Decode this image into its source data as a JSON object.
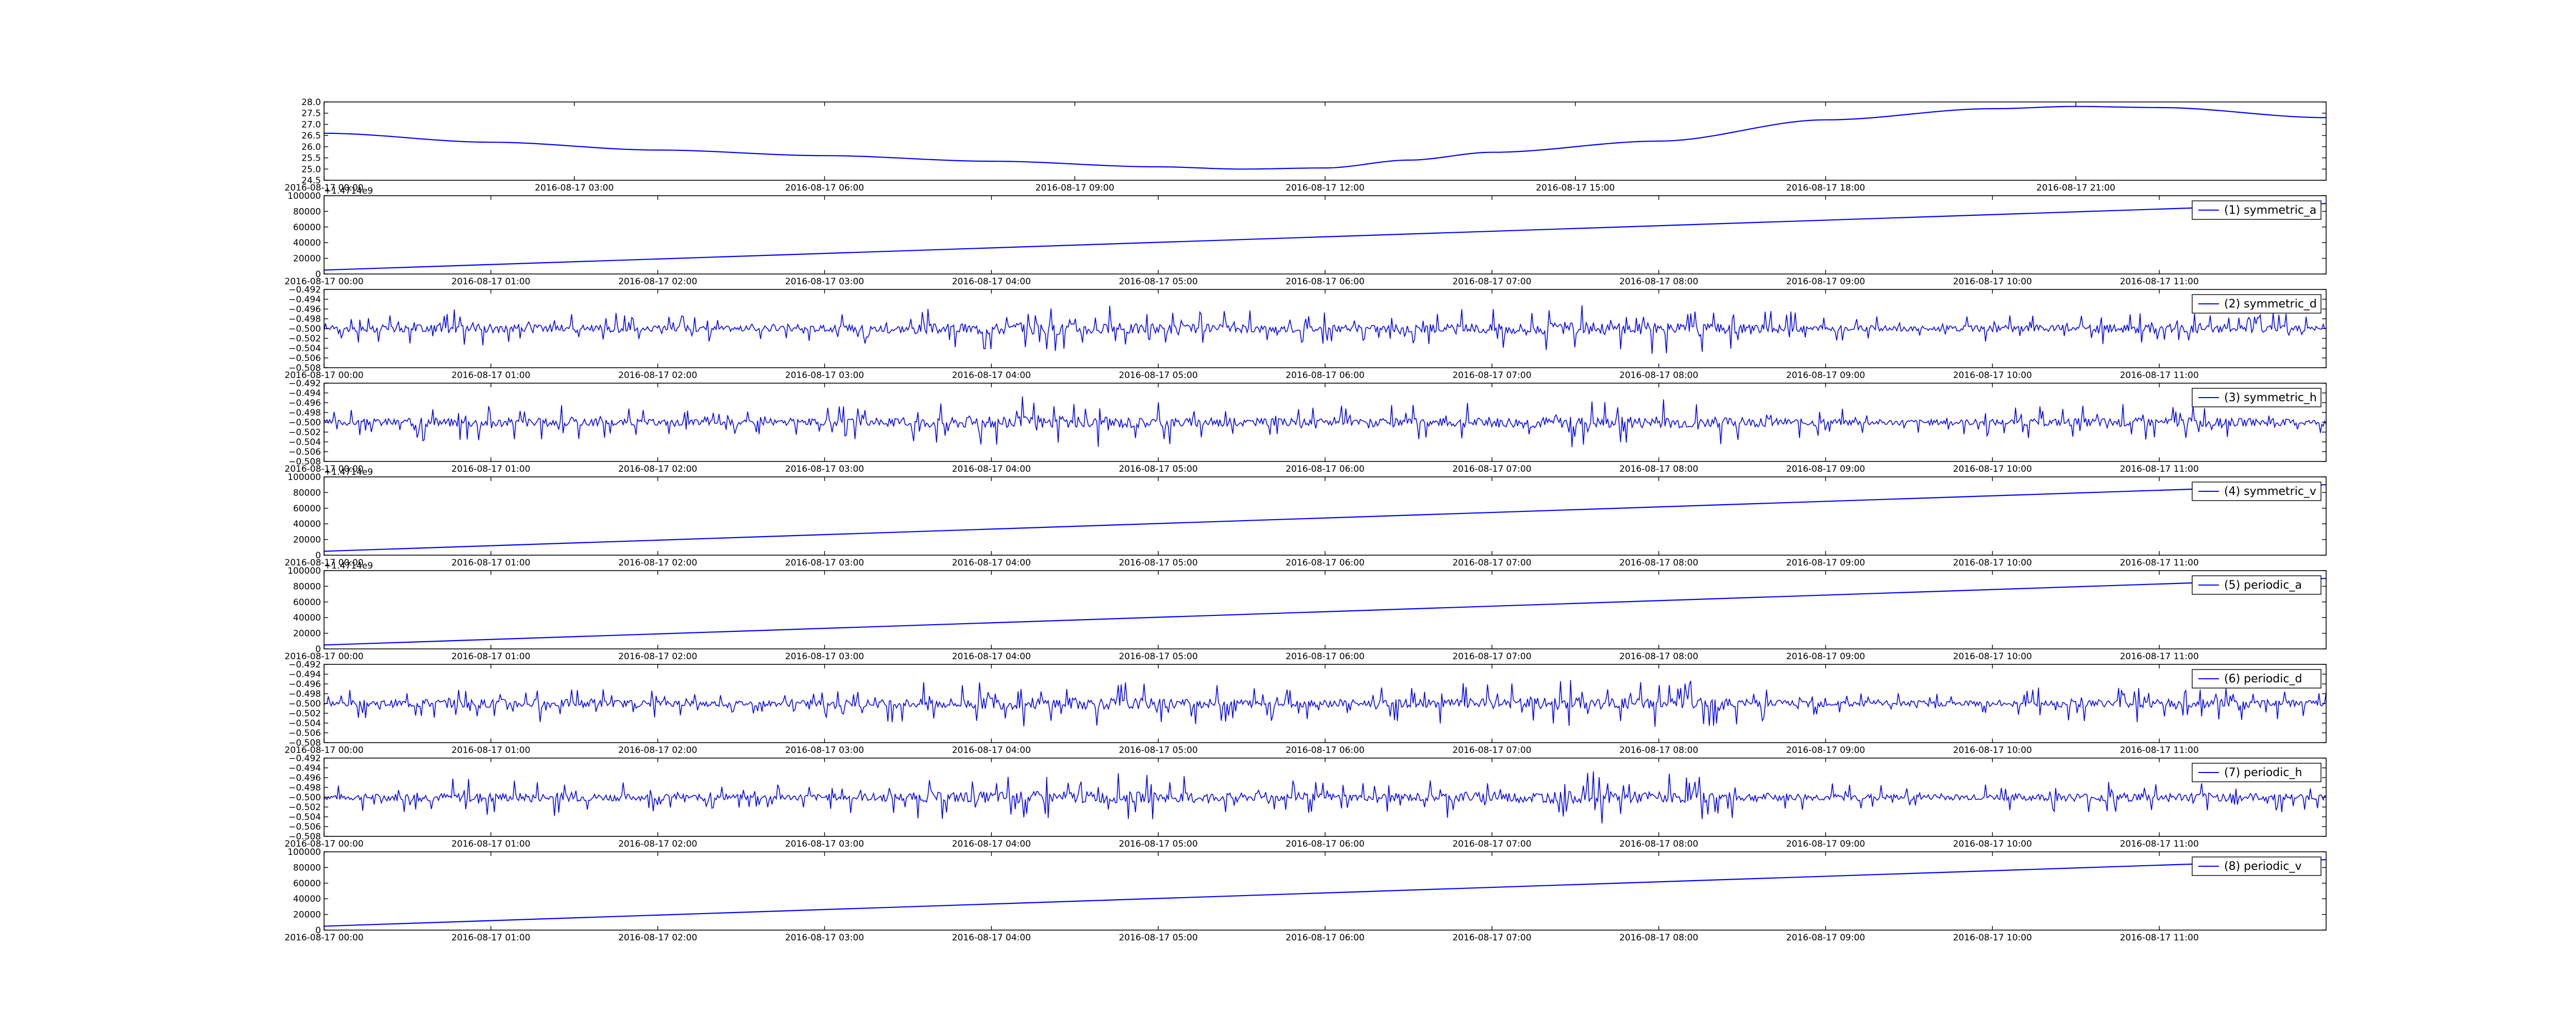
{
  "figure": {
    "background": "#ffffff",
    "line_color": "#0000ff",
    "axes_color": "#000000"
  },
  "chart_data": [
    {
      "type": "line",
      "name": "",
      "xaxis": "time",
      "x": [
        "2016-08-17 00:00",
        "2016-08-17 02:00",
        "2016-08-17 04:00",
        "2016-08-17 06:00",
        "2016-08-17 08:00",
        "2016-08-17 10:00",
        "2016-08-17 11:00",
        "2016-08-17 12:00",
        "2016-08-17 13:00",
        "2016-08-17 14:00",
        "2016-08-17 16:00",
        "2016-08-17 18:00",
        "2016-08-17 20:00",
        "2016-08-17 21:00",
        "2016-08-17 22:00",
        "2016-08-18 00:00"
      ],
      "y": [
        26.6,
        26.2,
        25.85,
        25.6,
        25.35,
        25.1,
        25.0,
        25.05,
        25.4,
        25.75,
        26.25,
        27.2,
        27.7,
        27.8,
        27.75,
        27.3
      ],
      "xlim": [
        "2016-08-17 00:00",
        "2016-08-18 00:00"
      ],
      "ylim": [
        24.5,
        28.0
      ],
      "xticks": [
        "2016-08-17 00:00",
        "2016-08-17 03:00",
        "2016-08-17 06:00",
        "2016-08-17 09:00",
        "2016-08-17 12:00",
        "2016-08-17 15:00",
        "2016-08-17 18:00",
        "2016-08-17 21:00"
      ],
      "yticks": [
        "24.5",
        "25.0",
        "25.5",
        "26.0",
        "26.5",
        "27.0",
        "27.5",
        "28.0"
      ],
      "offset_text": "",
      "legend": ""
    },
    {
      "type": "line",
      "name": "(1) symmetric_a",
      "xaxis": "time",
      "x": [
        "2016-08-17 00:00",
        "2016-08-17 12:00"
      ],
      "y": [
        5000,
        90000
      ],
      "xlim": [
        "2016-08-17 00:00",
        "2016-08-17 12:00"
      ],
      "ylim": [
        0,
        100000
      ],
      "xticks": [
        "2016-08-17 00:00",
        "2016-08-17 01:00",
        "2016-08-17 02:00",
        "2016-08-17 03:00",
        "2016-08-17 04:00",
        "2016-08-17 05:00",
        "2016-08-17 06:00",
        "2016-08-17 07:00",
        "2016-08-17 08:00",
        "2016-08-17 09:00",
        "2016-08-17 10:00",
        "2016-08-17 11:00"
      ],
      "yticks": [
        "0",
        "20000",
        "40000",
        "60000",
        "80000",
        "100000"
      ],
      "offset_text": "+1.4714e9",
      "legend": "(1) symmetric_a"
    },
    {
      "type": "line",
      "name": "(2) symmetric_d",
      "xaxis": "time",
      "noise": {
        "samples": 1400,
        "center": -0.5,
        "amplitude": 0.0045,
        "seed": 2
      },
      "xlim": [
        "2016-08-17 00:00",
        "2016-08-17 12:00"
      ],
      "ylim": [
        -0.508,
        -0.492
      ],
      "xticks": [
        "2016-08-17 00:00",
        "2016-08-17 01:00",
        "2016-08-17 02:00",
        "2016-08-17 03:00",
        "2016-08-17 04:00",
        "2016-08-17 05:00",
        "2016-08-17 06:00",
        "2016-08-17 07:00",
        "2016-08-17 08:00",
        "2016-08-17 09:00",
        "2016-08-17 10:00",
        "2016-08-17 11:00"
      ],
      "yticks": [
        "−0.508",
        "−0.506",
        "−0.504",
        "−0.502",
        "−0.500",
        "−0.498",
        "−0.496",
        "−0.494",
        "−0.492"
      ],
      "offset_text": "",
      "legend": "(2) symmetric_d"
    },
    {
      "type": "line",
      "name": "(3) symmetric_h",
      "xaxis": "time",
      "noise": {
        "samples": 1400,
        "center": -0.5,
        "amplitude": 0.0045,
        "seed": 3
      },
      "xlim": [
        "2016-08-17 00:00",
        "2016-08-17 12:00"
      ],
      "ylim": [
        -0.508,
        -0.492
      ],
      "xticks": [
        "2016-08-17 00:00",
        "2016-08-17 01:00",
        "2016-08-17 02:00",
        "2016-08-17 03:00",
        "2016-08-17 04:00",
        "2016-08-17 05:00",
        "2016-08-17 06:00",
        "2016-08-17 07:00",
        "2016-08-17 08:00",
        "2016-08-17 09:00",
        "2016-08-17 10:00",
        "2016-08-17 11:00"
      ],
      "yticks": [
        "−0.508",
        "−0.506",
        "−0.504",
        "−0.502",
        "−0.500",
        "−0.498",
        "−0.496",
        "−0.494",
        "−0.492"
      ],
      "offset_text": "",
      "legend": "(3) symmetric_h"
    },
    {
      "type": "line",
      "name": "(4) symmetric_v",
      "xaxis": "time",
      "x": [
        "2016-08-17 00:00",
        "2016-08-17 12:00"
      ],
      "y": [
        5000,
        90000
      ],
      "xlim": [
        "2016-08-17 00:00",
        "2016-08-17 12:00"
      ],
      "ylim": [
        0,
        100000
      ],
      "xticks": [
        "2016-08-17 00:00",
        "2016-08-17 01:00",
        "2016-08-17 02:00",
        "2016-08-17 03:00",
        "2016-08-17 04:00",
        "2016-08-17 05:00",
        "2016-08-17 06:00",
        "2016-08-17 07:00",
        "2016-08-17 08:00",
        "2016-08-17 09:00",
        "2016-08-17 10:00",
        "2016-08-17 11:00"
      ],
      "yticks": [
        "0",
        "20000",
        "40000",
        "60000",
        "80000",
        "100000"
      ],
      "offset_text": "+1.4714e9",
      "legend": "(4) symmetric_v"
    },
    {
      "type": "line",
      "name": "(5) periodic_a",
      "xaxis": "time",
      "x": [
        "2016-08-17 00:00",
        "2016-08-17 12:00"
      ],
      "y": [
        5000,
        90000
      ],
      "xlim": [
        "2016-08-17 00:00",
        "2016-08-17 12:00"
      ],
      "ylim": [
        0,
        100000
      ],
      "xticks": [
        "2016-08-17 00:00",
        "2016-08-17 01:00",
        "2016-08-17 02:00",
        "2016-08-17 03:00",
        "2016-08-17 04:00",
        "2016-08-17 05:00",
        "2016-08-17 06:00",
        "2016-08-17 07:00",
        "2016-08-17 08:00",
        "2016-08-17 09:00",
        "2016-08-17 10:00",
        "2016-08-17 11:00"
      ],
      "yticks": [
        "0",
        "20000",
        "40000",
        "60000",
        "80000",
        "100000"
      ],
      "offset_text": "+1.4714e9",
      "legend": "(5) periodic_a"
    },
    {
      "type": "line",
      "name": "(6) periodic_d",
      "xaxis": "time",
      "noise": {
        "samples": 1400,
        "center": -0.5,
        "amplitude": 0.0045,
        "seed": 6
      },
      "xlim": [
        "2016-08-17 00:00",
        "2016-08-17 12:00"
      ],
      "ylim": [
        -0.508,
        -0.492
      ],
      "xticks": [
        "2016-08-17 00:00",
        "2016-08-17 01:00",
        "2016-08-17 02:00",
        "2016-08-17 03:00",
        "2016-08-17 04:00",
        "2016-08-17 05:00",
        "2016-08-17 06:00",
        "2016-08-17 07:00",
        "2016-08-17 08:00",
        "2016-08-17 09:00",
        "2016-08-17 10:00",
        "2016-08-17 11:00"
      ],
      "yticks": [
        "−0.508",
        "−0.506",
        "−0.504",
        "−0.502",
        "−0.500",
        "−0.498",
        "−0.496",
        "−0.494",
        "−0.492"
      ],
      "offset_text": "",
      "legend": "(6) periodic_d"
    },
    {
      "type": "line",
      "name": "(7) periodic_h",
      "xaxis": "time",
      "noise": {
        "samples": 1400,
        "center": -0.5,
        "amplitude": 0.0045,
        "seed": 7
      },
      "xlim": [
        "2016-08-17 00:00",
        "2016-08-17 12:00"
      ],
      "ylim": [
        -0.508,
        -0.492
      ],
      "xticks": [
        "2016-08-17 00:00",
        "2016-08-17 01:00",
        "2016-08-17 02:00",
        "2016-08-17 03:00",
        "2016-08-17 04:00",
        "2016-08-17 05:00",
        "2016-08-17 06:00",
        "2016-08-17 07:00",
        "2016-08-17 08:00",
        "2016-08-17 09:00",
        "2016-08-17 10:00",
        "2016-08-17 11:00"
      ],
      "yticks": [
        "−0.508",
        "−0.506",
        "−0.504",
        "−0.502",
        "−0.500",
        "−0.498",
        "−0.496",
        "−0.494",
        "−0.492"
      ],
      "offset_text": "",
      "legend": "(7) periodic_h"
    },
    {
      "type": "line",
      "name": "(8) periodic_v",
      "xaxis": "time",
      "x": [
        "2016-08-17 00:00",
        "2016-08-17 12:00"
      ],
      "y": [
        5000,
        90000
      ],
      "xlim": [
        "2016-08-17 00:00",
        "2016-08-17 12:00"
      ],
      "ylim": [
        0,
        100000
      ],
      "xticks": [
        "2016-08-17 00:00",
        "2016-08-17 01:00",
        "2016-08-17 02:00",
        "2016-08-17 03:00",
        "2016-08-17 04:00",
        "2016-08-17 05:00",
        "2016-08-17 06:00",
        "2016-08-17 07:00",
        "2016-08-17 08:00",
        "2016-08-17 09:00",
        "2016-08-17 10:00",
        "2016-08-17 11:00"
      ],
      "yticks": [
        "0",
        "20000",
        "40000",
        "60000",
        "80000",
        "100000"
      ],
      "offset_text": "",
      "legend": "(8) periodic_v"
    }
  ]
}
